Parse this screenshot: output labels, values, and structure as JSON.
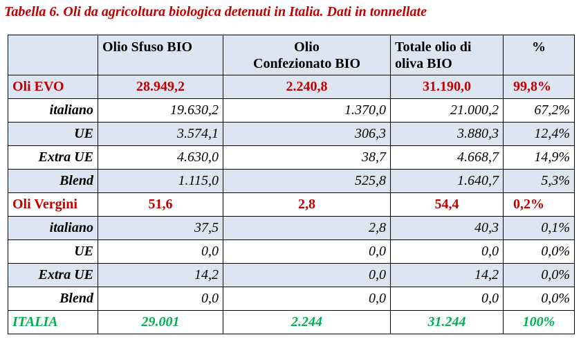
{
  "title": "Tabella 6. Oli da agricoltura biologica detenuti in Italia. Dati in tonnellate",
  "headers": {
    "c1": "Olio Sfuso BIO",
    "c2_line1": "Olio",
    "c2_line2": "Confezionato BIO",
    "c3_line1": "Totale olio di",
    "c3_line2": "oliva BIO",
    "c4": "%"
  },
  "rows": [
    {
      "label": "Oli EVO",
      "sfuso": "28.949,2",
      "confezionato": "2.240,8",
      "totale": "31.190,0",
      "pct": "99,8%"
    },
    {
      "label": "italiano",
      "sfuso": "19.630,2",
      "confezionato": "1.370,0",
      "totale": "21.000,2",
      "pct": "67,2%"
    },
    {
      "label": "UE",
      "sfuso": "3.574,1",
      "confezionato": "306,3",
      "totale": "3.880,3",
      "pct": "12,4%"
    },
    {
      "label": "Extra UE",
      "sfuso": "4.630,0",
      "confezionato": "38,7",
      "totale": "4.668,7",
      "pct": "14,9%"
    },
    {
      "label": "Blend",
      "sfuso": "1.115,0",
      "confezionato": "525,8",
      "totale": "1.640,7",
      "pct": "5,3%"
    },
    {
      "label": "Oli Vergini",
      "sfuso": "51,6",
      "confezionato": "2,8",
      "totale": "54,4",
      "pct": "0,2%"
    },
    {
      "label": "italiano",
      "sfuso": "37,5",
      "confezionato": "2,8",
      "totale": "40,3",
      "pct": "0,1%"
    },
    {
      "label": "UE",
      "sfuso": "0,0",
      "confezionato": "0,0",
      "totale": "0,0",
      "pct": "0,0%"
    },
    {
      "label": "Extra UE",
      "sfuso": "14,2",
      "confezionato": "0,0",
      "totale": "14,2",
      "pct": "0,0%"
    },
    {
      "label": "Blend",
      "sfuso": "0,0",
      "confezionato": "0,0",
      "totale": "0,0",
      "pct": "0,0%"
    },
    {
      "label": "ITALIA",
      "sfuso": "29.001",
      "confezionato": "2.244",
      "totale": "31.244",
      "pct": "100%"
    }
  ],
  "colors": {
    "title": "#c00000",
    "totals": "#c00000",
    "italia": "#00b050",
    "shade": "#dce6f2"
  }
}
